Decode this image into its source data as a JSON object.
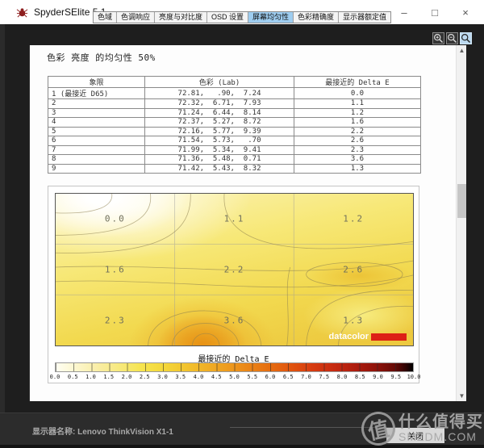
{
  "window": {
    "title": "SpyderSElite 5.1",
    "controls": {
      "minimize": "–",
      "maximize": "□",
      "close": "×"
    }
  },
  "tabs": [
    {
      "label": "色域",
      "active": false
    },
    {
      "label": "色调响应",
      "active": false
    },
    {
      "label": "亮度与对比度",
      "active": false
    },
    {
      "label": "OSD 设置",
      "active": false
    },
    {
      "label": "屏幕均匀性",
      "active": true
    },
    {
      "label": "色彩精确度",
      "active": false
    },
    {
      "label": "显示器额定值",
      "active": false
    }
  ],
  "toolbar": {
    "icons": [
      "zoom-in",
      "zoom-out",
      "zoom-select"
    ]
  },
  "main": {
    "title": "色彩 亮度 的均匀性 50%",
    "table": {
      "headers": [
        "象限",
        "色彩 (Lab)",
        "最接近的 Delta E"
      ],
      "rows": [
        [
          "1 (最接近 D65)",
          "72.81,   .90,  7.24",
          "0.0"
        ],
        [
          "2",
          "72.32,  6.71,  7.93",
          "1.1"
        ],
        [
          "3",
          "71.24,  6.44,  8.14",
          "1.2"
        ],
        [
          "4",
          "72.37,  5.27,  8.72",
          "1.6"
        ],
        [
          "5",
          "72.16,  5.77,  9.39",
          "2.2"
        ],
        [
          "6",
          "71.54,  5.73,   .70",
          "2.6"
        ],
        [
          "7",
          "71.99,  5.34,  9.41",
          "2.3"
        ],
        [
          "8",
          "71.36,  5.48,  0.71",
          "3.6"
        ],
        [
          "9",
          "71.42,  5.43,  8.32",
          "1.3"
        ]
      ]
    },
    "heatmap": {
      "values": [
        [
          0.0,
          1.1,
          1.2
        ],
        [
          1.6,
          2.2,
          2.6
        ],
        [
          2.3,
          3.6,
          1.3
        ]
      ],
      "watermark": "datacolor",
      "scale_title": "最接近的 Delta E",
      "scale_ticks": [
        "0.0",
        "0.5",
        "1.0",
        "1.5",
        "2.0",
        "2.5",
        "3.0",
        "3.5",
        "4.0",
        "4.5",
        "5.0",
        "5.5",
        "6.0",
        "6.5",
        "7.0",
        "7.5",
        "8.0",
        "8.5",
        "9.0",
        "9.5",
        "10.0"
      ]
    }
  },
  "chart_data": {
    "type": "heatmap",
    "title": "色彩 亮度 的均匀性 50%",
    "grid_rows": 3,
    "grid_cols": 3,
    "values": [
      [
        0.0,
        1.1,
        1.2
      ],
      [
        1.6,
        2.2,
        2.6
      ],
      [
        2.3,
        3.6,
        1.3
      ]
    ],
    "colorbar_label": "最接近的 Delta E",
    "colorbar_range": [
      0.0,
      10.0
    ],
    "colorbar_tick_step": 0.5,
    "colorbar_colors": [
      "#fffef2",
      "#f6e44e",
      "#ee9c1e",
      "#d63b10",
      "#000000"
    ]
  },
  "footer": {
    "monitor_label": "显示器名称:",
    "monitor_name": "Lenovo ThinkVision X1-1",
    "close_button": "关闭"
  },
  "site_watermark": {
    "logo_char": "值",
    "line1": "什么值得买",
    "line2": "SMZDM.COM"
  }
}
